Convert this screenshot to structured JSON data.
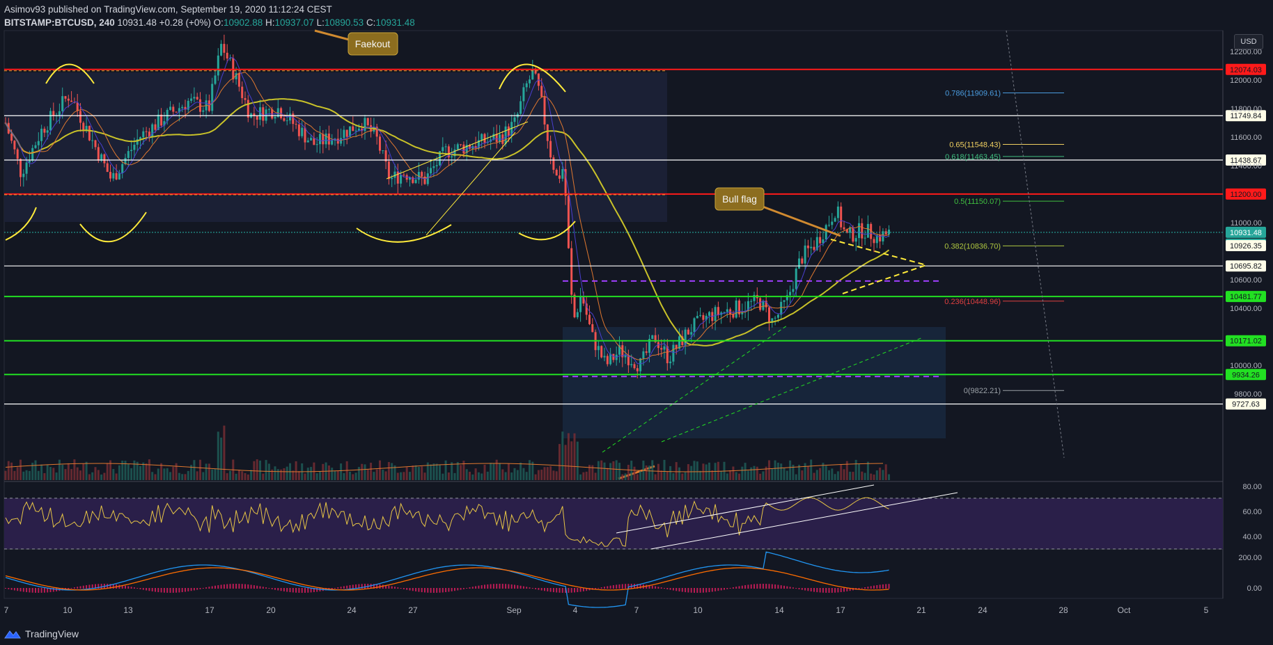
{
  "header": {
    "publisher": "Asimov93 published on TradingView.com, September 19, 2020 11:12:24 CEST",
    "symbol": "BITSTAMP:BTCUSD, 240",
    "last": "10931.48",
    "change": "+0.28 (+0%)",
    "o_label": "O:",
    "o_value": "10902.88",
    "h_label": "H:",
    "h_value": "10937.07",
    "l_label": "L:",
    "l_value": "10890.53",
    "c_label": "C:",
    "c_value": "10931.48"
  },
  "currency_button": "USD",
  "footer_logo_text": "TradingView",
  "annotations": {
    "faekout": "Faekout",
    "bull_flag": "Bull flag"
  },
  "colors": {
    "background": "#131722",
    "up": "#26a69a",
    "down": "#ef5350",
    "resistance_red": "#ff1a1a",
    "support_green": "#22e022",
    "white_level": "#ffffff",
    "annotation_box": "#8c6d1f",
    "ema_yellow": "#c9c229",
    "rsi_band": "#2a1f49"
  },
  "chart_data": {
    "type": "candlestick",
    "symbol": "BITSTAMP:BTCUSD",
    "timeframe": "240",
    "x_tick_labels": [
      "7",
      "10",
      "13",
      "17",
      "20",
      "24",
      "27",
      "Sep",
      "4",
      "7",
      "10",
      "14",
      "17",
      "21",
      "24",
      "28",
      "Oct",
      "5"
    ],
    "y_tick_labels": [
      "12200.00",
      "12000.00",
      "11800.00",
      "11600.00",
      "11400.00",
      "11000.00",
      "10600.00",
      "10400.00",
      "10000.00",
      "9800.00"
    ],
    "price_levels": [
      {
        "value": "12074.03",
        "kind": "resistance",
        "color": "#ff1a1a"
      },
      {
        "value": "11749.84",
        "kind": "level",
        "color": "#ffffff"
      },
      {
        "value": "11438.67",
        "kind": "level",
        "color": "#ffffff"
      },
      {
        "value": "11200.00",
        "kind": "resistance",
        "color": "#ff1a1a"
      },
      {
        "value": "10931.48",
        "kind": "last",
        "color": "#26a69a"
      },
      {
        "value": "10926.35",
        "kind": "level",
        "color": "#ffffff"
      },
      {
        "value": "10695.82",
        "kind": "level",
        "color": "#ffffff"
      },
      {
        "value": "10481.77",
        "kind": "support",
        "color": "#22e022"
      },
      {
        "value": "10171.02",
        "kind": "support",
        "color": "#22e022"
      },
      {
        "value": "9934.26",
        "kind": "support",
        "color": "#22e022"
      },
      {
        "value": "9727.63",
        "kind": "level",
        "color": "#ffffff"
      }
    ],
    "countdown": "02:47:39",
    "fibonacci": [
      {
        "label": "0.786(11909.61)",
        "value": 11909.61,
        "color": "#4a9ce0"
      },
      {
        "label": "0.65(11548.43)",
        "value": 11548.43,
        "color": "#f0d060"
      },
      {
        "label": "0.618(11463.45)",
        "value": 11463.45,
        "color": "#40c080"
      },
      {
        "label": "0.5(11150.07)",
        "value": 11150.07,
        "color": "#40c040"
      },
      {
        "label": "0.382(10836.70)",
        "value": 10836.7,
        "color": "#b0c840"
      },
      {
        "label": "0.236(10448.96)",
        "value": 10448.96,
        "color": "#e04040"
      },
      {
        "label": "0(9822.21)",
        "value": 9822.21,
        "color": "#9aa0a6"
      }
    ],
    "rsi_tick_labels": [
      "80.00",
      "60.00",
      "40.00"
    ],
    "macd_tick_labels": [
      "200.00",
      "0.00"
    ]
  }
}
